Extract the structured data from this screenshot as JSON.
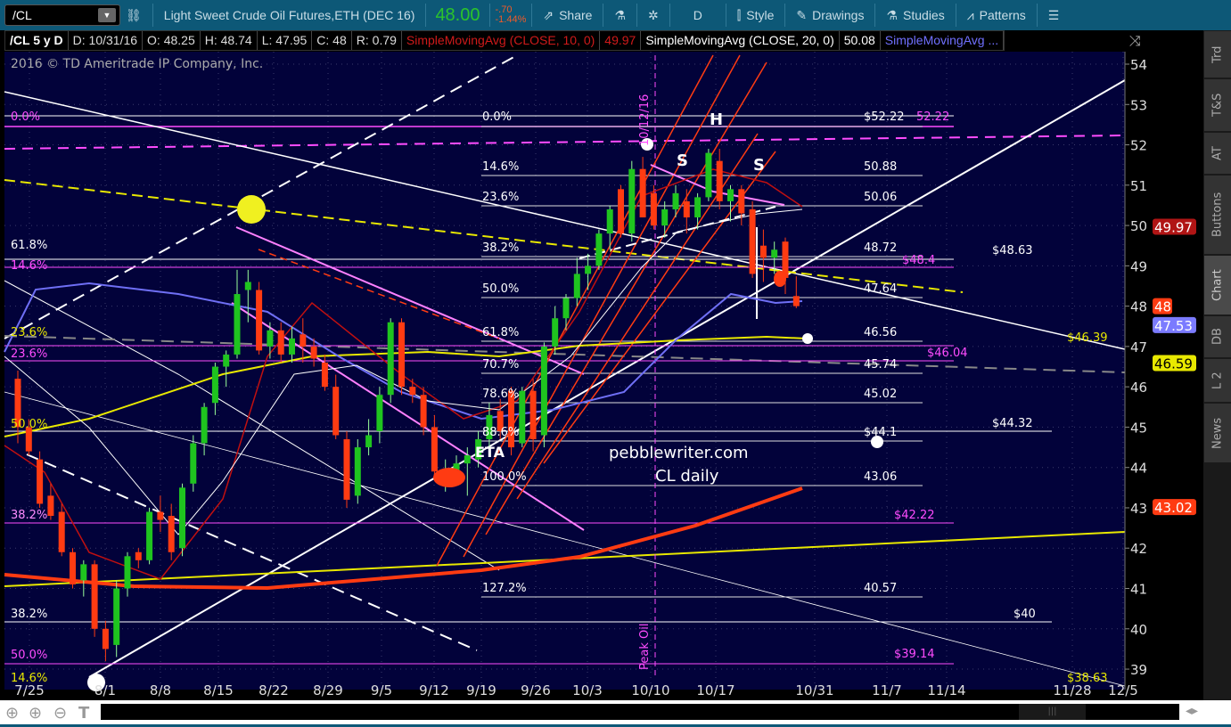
{
  "toolbar": {
    "symbol": "/CL",
    "description": "Light Sweet Crude Oil Futures,ETH (DEC 16)",
    "last": "48.00",
    "change": "-.70",
    "change_pct": "-1.44%",
    "share": "Share",
    "period": "D",
    "style": "Style",
    "drawings": "Drawings",
    "studies": "Studies",
    "patterns": "Patterns"
  },
  "info": {
    "title": "/CL 5 y D",
    "date": "D: 10/31/16",
    "open": "O: 48.25",
    "high": "H: 48.74",
    "low": "L: 47.95",
    "close": "C: 48",
    "range": "R: 0.79",
    "sma10_label": "SimpleMovingAvg (CLOSE, 10, 0)",
    "sma10_value": "49.97",
    "sma20_label": "SimpleMovingAvg (CLOSE, 20, 0)",
    "sma20_value": "50.08",
    "sma_more": "SimpleMovingAvg ..."
  },
  "copyright": "2016 © TD Ameritrade IP Company, Inc.",
  "side_tabs": [
    {
      "label": "Trd"
    },
    {
      "label": "T&S"
    },
    {
      "label": "AT"
    },
    {
      "label": "Buttons"
    },
    {
      "label": "Chart",
      "active": true
    },
    {
      "label": "DB"
    },
    {
      "label": "L 2"
    },
    {
      "label": "News"
    }
  ],
  "colors": {
    "background": "#02023a",
    "up": "#1fc41f",
    "down": "#ff3b12",
    "sma10": "#c01010",
    "sma20": "#ffffff",
    "sma50": "#6f6ff5",
    "sma100": "#e8e800",
    "sma200": "#ff3b12",
    "fib_magenta": "#ff4cff"
  },
  "chart_data": {
    "type": "candlestick",
    "ylim": [
      38.7,
      54.2
    ],
    "yticks": [
      39,
      40,
      41,
      42,
      43,
      44,
      45,
      46,
      47,
      48,
      49,
      50,
      51,
      52,
      53,
      54
    ],
    "xticks": [
      "7/25",
      "8/1",
      "8/8",
      "8/15",
      "8/22",
      "8/29",
      "9/5",
      "9/12",
      "9/19",
      "9/26",
      "10/3",
      "10/10",
      "10/17",
      "10/31",
      "11/7",
      "11/14",
      "11/28",
      "12/5"
    ],
    "price_badges": [
      {
        "value": "49.97",
        "color": "#b01515"
      },
      {
        "value": "48",
        "color": "#ff3b12"
      },
      {
        "value": "47.53",
        "color": "#7b7bff"
      },
      {
        "value": "46.59",
        "color": "#e8e800"
      },
      {
        "value": "43.02",
        "color": "#ff3b12"
      }
    ],
    "candles": [
      [
        "7/21",
        46.2,
        46.4,
        44.6,
        45.0
      ],
      [
        "7/22",
        45.0,
        45.2,
        44.3,
        44.4
      ],
      [
        "7/25",
        44.2,
        44.4,
        43.0,
        43.1
      ],
      [
        "7/26",
        43.3,
        43.6,
        42.7,
        42.8
      ],
      [
        "7/27",
        42.9,
        43.1,
        41.8,
        41.9
      ],
      [
        "7/28",
        41.9,
        42.0,
        41.0,
        41.1
      ],
      [
        "7/29",
        41.2,
        41.7,
        40.8,
        41.6
      ],
      [
        "8/1",
        41.6,
        41.7,
        39.8,
        40.0
      ],
      [
        "8/2",
        40.0,
        40.2,
        39.2,
        39.5
      ],
      [
        "8/3",
        39.6,
        41.2,
        39.3,
        41.0
      ],
      [
        "8/4",
        41.0,
        41.9,
        40.8,
        41.8
      ],
      [
        "8/5",
        41.9,
        42.0,
        41.5,
        41.7
      ],
      [
        "8/8",
        41.7,
        43.0,
        41.6,
        42.9
      ],
      [
        "8/9",
        42.9,
        43.3,
        42.4,
        42.7
      ],
      [
        "8/10",
        42.8,
        43.1,
        41.7,
        41.9
      ],
      [
        "8/11",
        42.0,
        43.6,
        41.8,
        43.5
      ],
      [
        "8/12",
        43.6,
        44.8,
        43.4,
        44.6
      ],
      [
        "8/15",
        44.6,
        45.6,
        44.3,
        45.5
      ],
      [
        "8/16",
        45.6,
        46.6,
        45.3,
        46.5
      ],
      [
        "8/17",
        46.5,
        46.9,
        46.0,
        46.8
      ],
      [
        "8/18",
        46.8,
        48.9,
        46.7,
        48.3
      ],
      [
        "8/19",
        48.4,
        48.9,
        47.6,
        48.6
      ],
      [
        "8/22",
        48.4,
        48.6,
        46.8,
        46.9
      ],
      [
        "8/23",
        47.0,
        47.6,
        46.7,
        47.4
      ],
      [
        "8/24",
        47.4,
        47.6,
        46.6,
        46.8
      ],
      [
        "8/25",
        46.8,
        47.5,
        46.6,
        47.2
      ],
      [
        "8/26",
        47.3,
        47.7,
        46.6,
        47.0
      ],
      [
        "8/29",
        47.0,
        47.2,
        46.5,
        46.7
      ],
      [
        "8/30",
        46.6,
        46.8,
        45.9,
        46.0
      ],
      [
        "8/31",
        46.0,
        46.3,
        44.7,
        44.8
      ],
      [
        "9/1",
        44.7,
        44.9,
        43.0,
        43.2
      ],
      [
        "9/2",
        43.3,
        44.7,
        43.1,
        44.5
      ],
      [
        "9/6",
        44.5,
        45.2,
        44.3,
        44.8
      ],
      [
        "9/7",
        44.9,
        46.0,
        44.6,
        45.8
      ],
      [
        "9/8",
        45.8,
        47.7,
        45.6,
        47.6
      ],
      [
        "9/9",
        47.6,
        47.7,
        45.8,
        46.0
      ],
      [
        "9/12",
        46.0,
        46.2,
        45.6,
        45.8
      ],
      [
        "9/13",
        45.8,
        46.0,
        44.8,
        45.0
      ],
      [
        "9/14",
        45.0,
        45.3,
        43.8,
        43.9
      ],
      [
        "9/15",
        43.9,
        44.2,
        43.4,
        43.9
      ],
      [
        "9/16",
        43.9,
        44.3,
        43.6,
        44.1
      ],
      [
        "9/19",
        44.1,
        44.5,
        43.3,
        44.3
      ],
      [
        "9/20",
        44.2,
        44.9,
        44.0,
        44.7
      ],
      [
        "9/21",
        44.7,
        45.6,
        44.5,
        45.3
      ],
      [
        "9/22",
        45.4,
        45.7,
        44.7,
        44.9
      ],
      [
        "9/23",
        45.9,
        46.0,
        44.3,
        44.5
      ],
      [
        "9/26",
        44.6,
        46.0,
        44.5,
        45.9
      ],
      [
        "9/27",
        45.9,
        46.2,
        44.4,
        44.7
      ],
      [
        "9/28",
        44.8,
        47.1,
        44.5,
        47.0
      ],
      [
        "9/29",
        47.0,
        48.0,
        46.8,
        47.7
      ],
      [
        "9/30",
        47.7,
        48.3,
        47.4,
        48.2
      ],
      [
        "10/3",
        48.2,
        49.2,
        48.0,
        48.8
      ],
      [
        "10/4",
        48.8,
        49.3,
        48.4,
        49.0
      ],
      [
        "10/5",
        49.0,
        49.9,
        48.9,
        49.8
      ],
      [
        "10/6",
        49.8,
        50.5,
        49.4,
        50.4
      ],
      [
        "10/7",
        50.9,
        51.0,
        49.7,
        49.8
      ],
      [
        "10/10",
        49.8,
        51.6,
        49.6,
        51.4
      ],
      [
        "10/11",
        51.4,
        51.7,
        50.2,
        50.2
      ],
      [
        "10/12",
        50.8,
        51.0,
        49.9,
        50.0
      ],
      [
        "10/13",
        50.0,
        50.6,
        49.7,
        50.4
      ],
      [
        "10/14",
        50.4,
        51.0,
        50.2,
        50.8
      ],
      [
        "10/17",
        50.6,
        50.9,
        49.8,
        50.2
      ],
      [
        "10/18",
        50.2,
        50.8,
        49.9,
        50.7
      ],
      [
        "10/19",
        50.7,
        51.9,
        50.6,
        51.8
      ],
      [
        "10/20",
        51.6,
        51.9,
        50.4,
        50.6
      ],
      [
        "10/21",
        50.6,
        51.0,
        50.1,
        50.9
      ],
      [
        "10/24",
        50.9,
        51.0,
        50.0,
        50.3
      ],
      [
        "10/25",
        50.4,
        50.6,
        48.7,
        48.8
      ],
      [
        "10/26",
        49.5,
        49.9,
        48.6,
        49.2
      ],
      [
        "10/27",
        49.2,
        49.6,
        48.8,
        49.4
      ],
      [
        "10/28",
        49.6,
        49.7,
        48.3,
        48.7
      ],
      [
        "10/31",
        48.25,
        48.74,
        47.95,
        48.0
      ]
    ],
    "fib_left": [
      {
        "text": "0.0%",
        "color": "#ff4cff"
      },
      {
        "text": "61.8%",
        "color": "#ffffff"
      },
      {
        "text": "14.6%",
        "color": "#ff4cff"
      },
      {
        "text": "23.6%",
        "color": "#e8e800"
      },
      {
        "text": "23.6%",
        "color": "#ff4cff"
      },
      {
        "text": "50.0%",
        "color": "#e8e800"
      },
      {
        "text": "38.2%",
        "color": "#ff8cff"
      },
      {
        "text": "38.2%",
        "color": "#ffffff"
      },
      {
        "text": "50.0%",
        "color": "#ff4cff"
      },
      {
        "text": "14.6%",
        "color": "#e8e800"
      }
    ],
    "fib_main": [
      {
        "pct": "0.0%",
        "price": "$52.22"
      },
      {
        "pct": "14.6%",
        "price": "50.88"
      },
      {
        "pct": "23.6%",
        "price": "50.06"
      },
      {
        "pct": "38.2%",
        "price": "48.72"
      },
      {
        "pct": "50.0%",
        "price": "47.64"
      },
      {
        "pct": "61.8%",
        "price": "46.56"
      },
      {
        "pct": "70.7%",
        "price": "45.74"
      },
      {
        "pct": "78.6%",
        "price": "45.02"
      },
      {
        "pct": "88.6%",
        "price": "$44.1"
      },
      {
        "pct": "100.0%",
        "price": "43.06"
      },
      {
        "pct": "127.2%",
        "price": "40.57"
      }
    ],
    "level_labels": [
      {
        "text": "52.22",
        "color": "#ff4cff"
      },
      {
        "text": "$48.63",
        "color": "#ffffff"
      },
      {
        "text": "$48.4",
        "color": "#ff4cff"
      },
      {
        "text": "$46.39",
        "color": "#e8e800"
      },
      {
        "text": "$46.04",
        "color": "#ff4cff"
      },
      {
        "text": "$44.32",
        "color": "#ffffff"
      },
      {
        "text": "$42.22",
        "color": "#ff4cff"
      },
      {
        "text": "$40",
        "color": "#ffffff"
      },
      {
        "text": "$39.14",
        "color": "#ff4cff"
      },
      {
        "text": "$38.63",
        "color": "#e8e800"
      }
    ],
    "annotations": {
      "site": "pebblewriter.com",
      "subtitle": "CL daily",
      "head": "H",
      "shoulder_left": "S",
      "shoulder_right": "S",
      "eta": "ETA",
      "date_marker": "10/12/16",
      "peak_oil": "Peak Oil"
    }
  }
}
